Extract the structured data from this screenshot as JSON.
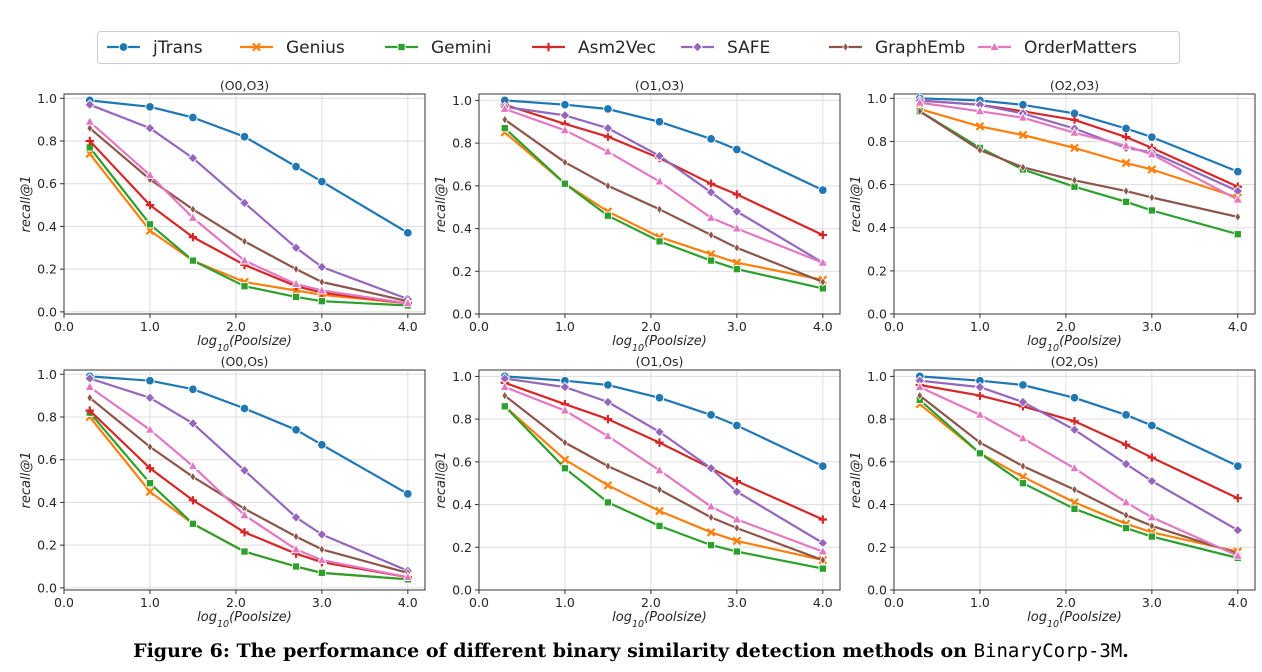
{
  "caption": {
    "prefix": "Figure 6: The performance of different binary similarity detection methods on ",
    "dataset": "BinaryCorp-3M",
    "suffix": "."
  },
  "chart_data": {
    "type": "line",
    "x": [
      0.3,
      1.0,
      1.5,
      2.1,
      2.7,
      3.0,
      4.0
    ],
    "xlim": [
      0.0,
      4.2
    ],
    "xticks": [
      "0.0",
      "1.0",
      "2.0",
      "3.0",
      "4.0"
    ],
    "xlabel": "log10(Poolsize)",
    "ylabel": "recall@1",
    "grid": true,
    "legend_position": "top",
    "series_style": [
      {
        "name": "jTrans",
        "color": "#1f77b4",
        "marker": "circle"
      },
      {
        "name": "Genius",
        "color": "#ff7f0e",
        "marker": "x"
      },
      {
        "name": "Gemini",
        "color": "#2ca02c",
        "marker": "square"
      },
      {
        "name": "Asm2Vec",
        "color": "#d62728",
        "marker": "plus"
      },
      {
        "name": "SAFE",
        "color": "#9467bd",
        "marker": "diamond"
      },
      {
        "name": "GraphEmb",
        "color": "#8c564b",
        "marker": "thin_diamond"
      },
      {
        "name": "OrderMatters",
        "color": "#e377c2",
        "marker": "triangle"
      }
    ],
    "panels": [
      {
        "title": "(O0,O3)",
        "ylim": [
          -0.01,
          1.02
        ],
        "yticks": [
          "0.0",
          "0.2",
          "0.4",
          "0.6",
          "0.8",
          "1.0"
        ],
        "series": [
          [
            0.99,
            0.96,
            0.91,
            0.82,
            0.68,
            0.61,
            0.37
          ],
          [
            0.74,
            0.38,
            0.24,
            0.14,
            0.1,
            0.08,
            0.04
          ],
          [
            0.77,
            0.41,
            0.24,
            0.12,
            0.07,
            0.05,
            0.03
          ],
          [
            0.8,
            0.5,
            0.35,
            0.22,
            0.12,
            0.09,
            0.04
          ],
          [
            0.97,
            0.86,
            0.72,
            0.51,
            0.3,
            0.21,
            0.06
          ],
          [
            0.86,
            0.62,
            0.48,
            0.33,
            0.2,
            0.14,
            0.05
          ],
          [
            0.89,
            0.64,
            0.44,
            0.24,
            0.13,
            0.1,
            0.04
          ]
        ]
      },
      {
        "title": "(O1,O3)",
        "ylim": [
          0.0,
          1.03
        ],
        "yticks": [
          "0.0",
          "0.2",
          "0.4",
          "0.6",
          "0.8",
          "1.0"
        ],
        "series": [
          [
            1.0,
            0.98,
            0.96,
            0.9,
            0.82,
            0.77,
            0.58
          ],
          [
            0.85,
            0.61,
            0.48,
            0.36,
            0.28,
            0.24,
            0.16
          ],
          [
            0.87,
            0.61,
            0.46,
            0.34,
            0.25,
            0.21,
            0.12
          ],
          [
            0.98,
            0.89,
            0.83,
            0.73,
            0.61,
            0.56,
            0.37
          ],
          [
            0.97,
            0.93,
            0.87,
            0.74,
            0.57,
            0.48,
            0.24
          ],
          [
            0.91,
            0.71,
            0.6,
            0.49,
            0.37,
            0.31,
            0.15
          ],
          [
            0.96,
            0.86,
            0.76,
            0.62,
            0.45,
            0.4,
            0.24
          ]
        ]
      },
      {
        "title": "(O2,O3)",
        "ylim": [
          0.0,
          1.02
        ],
        "yticks": [
          "0.0",
          "0.2",
          "0.4",
          "0.6",
          "0.8",
          "1.0"
        ],
        "series": [
          [
            1.0,
            0.99,
            0.97,
            0.93,
            0.86,
            0.82,
            0.66
          ],
          [
            0.95,
            0.87,
            0.83,
            0.77,
            0.7,
            0.67,
            0.54
          ],
          [
            0.94,
            0.77,
            0.67,
            0.59,
            0.52,
            0.48,
            0.37
          ],
          [
            0.99,
            0.97,
            0.94,
            0.9,
            0.82,
            0.77,
            0.59
          ],
          [
            0.99,
            0.97,
            0.93,
            0.86,
            0.77,
            0.75,
            0.57
          ],
          [
            0.94,
            0.76,
            0.68,
            0.62,
            0.57,
            0.54,
            0.45
          ],
          [
            0.98,
            0.94,
            0.91,
            0.84,
            0.78,
            0.74,
            0.53
          ]
        ]
      },
      {
        "title": "(O0,Os)",
        "ylim": [
          -0.01,
          1.02
        ],
        "yticks": [
          "0.0",
          "0.2",
          "0.4",
          "0.6",
          "0.8",
          "1.0"
        ],
        "series": [
          [
            0.99,
            0.97,
            0.93,
            0.84,
            0.74,
            0.67,
            0.44
          ],
          [
            0.8,
            0.45,
            0.3,
            0.17,
            0.1,
            0.07,
            0.04
          ],
          [
            0.82,
            0.49,
            0.3,
            0.17,
            0.1,
            0.07,
            0.04
          ],
          [
            0.83,
            0.56,
            0.41,
            0.26,
            0.16,
            0.12,
            0.05
          ],
          [
            0.98,
            0.89,
            0.77,
            0.55,
            0.33,
            0.25,
            0.08
          ],
          [
            0.89,
            0.66,
            0.52,
            0.37,
            0.24,
            0.18,
            0.07
          ],
          [
            0.94,
            0.74,
            0.57,
            0.34,
            0.18,
            0.13,
            0.05
          ]
        ]
      },
      {
        "title": "(O1,Os)",
        "ylim": [
          0.0,
          1.03
        ],
        "yticks": [
          "0.0",
          "0.2",
          "0.4",
          "0.6",
          "0.8",
          "1.0"
        ],
        "series": [
          [
            1.0,
            0.98,
            0.96,
            0.9,
            0.82,
            0.77,
            0.58
          ],
          [
            0.86,
            0.61,
            0.49,
            0.37,
            0.27,
            0.23,
            0.14
          ],
          [
            0.86,
            0.57,
            0.41,
            0.3,
            0.21,
            0.18,
            0.1
          ],
          [
            0.97,
            0.87,
            0.8,
            0.69,
            0.57,
            0.51,
            0.33
          ],
          [
            0.99,
            0.95,
            0.88,
            0.74,
            0.57,
            0.46,
            0.22
          ],
          [
            0.91,
            0.69,
            0.58,
            0.47,
            0.34,
            0.29,
            0.14
          ],
          [
            0.95,
            0.84,
            0.72,
            0.56,
            0.39,
            0.33,
            0.18
          ]
        ]
      },
      {
        "title": "(O2,Os)",
        "ylim": [
          0.0,
          1.03
        ],
        "yticks": [
          "0.0",
          "0.2",
          "0.4",
          "0.6",
          "0.8",
          "1.0"
        ],
        "series": [
          [
            1.0,
            0.98,
            0.96,
            0.9,
            0.82,
            0.77,
            0.58
          ],
          [
            0.87,
            0.64,
            0.53,
            0.41,
            0.31,
            0.27,
            0.18
          ],
          [
            0.89,
            0.64,
            0.5,
            0.38,
            0.29,
            0.25,
            0.15
          ],
          [
            0.96,
            0.91,
            0.86,
            0.79,
            0.68,
            0.62,
            0.43
          ],
          [
            0.98,
            0.95,
            0.88,
            0.75,
            0.59,
            0.51,
            0.28
          ],
          [
            0.91,
            0.69,
            0.58,
            0.47,
            0.35,
            0.3,
            0.17
          ],
          [
            0.95,
            0.82,
            0.71,
            0.57,
            0.41,
            0.34,
            0.16
          ]
        ]
      }
    ]
  }
}
